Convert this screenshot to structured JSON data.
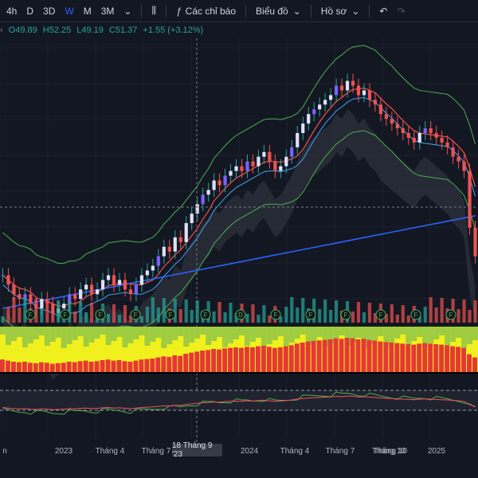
{
  "toolbar": {
    "intervals": [
      {
        "label": "4h",
        "active": false
      },
      {
        "label": "D",
        "active": false
      },
      {
        "label": "3D",
        "active": false
      },
      {
        "label": "W",
        "active": true
      },
      {
        "label": "M",
        "active": false
      },
      {
        "label": "3M",
        "active": false
      }
    ],
    "indicators_label": "Các chỉ báo",
    "chart_label": "Biểu đồ",
    "profile_label": "Hồ sơ"
  },
  "ohlc": {
    "open": "O49.89",
    "high": "H52.25",
    "low": "L49.19",
    "close": "C51.37",
    "change": "+1.55 (+3.12%)"
  },
  "x_axis": {
    "labels": [
      "n",
      "2023",
      "Tháng 4",
      "Tháng 7",
      "Tháng 10",
      "2024",
      "Tháng 4",
      "Tháng 7",
      "Tháng 10",
      "2025"
    ],
    "crosshair_label": "18 Tháng 9 '23"
  },
  "colors": {
    "up": "#26a69a",
    "down": "#ef5350",
    "up_wick_highlight": "#7b61ff",
    "bollinger": "#4caf50",
    "ma_long": "#2962ff",
    "ma_red": "#ef5350",
    "ma_blue": "#42a5f5",
    "cloud": "#363a45",
    "volume_up": "#26a69a",
    "volume_down": "#ef5350",
    "heat_yellow": "#f0f01e",
    "heat_green": "#8bc34a",
    "heat_red": "#e53935"
  },
  "chart_data": {
    "type": "line",
    "title": "",
    "series": [
      {
        "values": [
          40,
          38,
          36,
          35,
          36,
          34,
          33,
          35,
          34,
          32,
          33,
          34,
          36,
          35,
          37,
          38,
          36,
          37,
          39,
          40,
          38,
          39,
          37,
          36,
          38,
          40,
          41,
          42,
          44,
          46,
          45,
          48,
          47,
          51,
          53,
          55,
          57,
          58,
          60,
          59,
          61,
          62,
          63,
          62,
          64,
          63,
          65,
          66,
          64,
          62,
          63,
          65,
          67,
          70,
          72,
          74,
          75,
          76,
          77,
          78,
          80,
          79,
          81,
          80,
          78,
          79,
          77,
          76,
          74,
          73,
          72,
          71,
          70,
          69,
          68,
          70,
          71,
          70,
          69,
          68,
          67,
          65,
          64,
          62,
          50,
          44
        ]
      }
    ],
    "markers": [
      "F",
      "F",
      "F",
      "F",
      "F",
      "F",
      "D",
      "F",
      "F",
      "F",
      "F",
      "F",
      "F"
    ],
    "ylim": [
      30,
      90
    ],
    "grid": true
  }
}
